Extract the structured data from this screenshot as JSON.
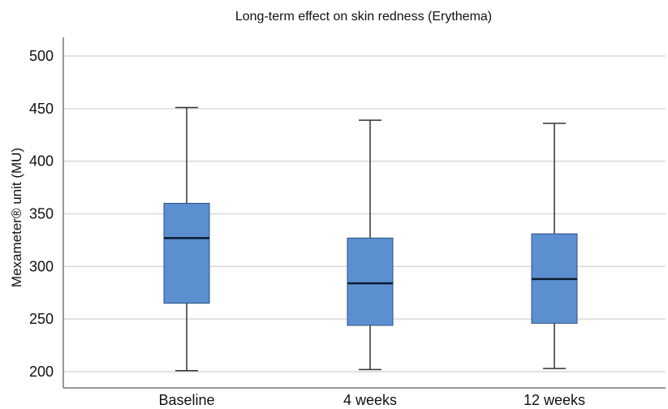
{
  "chart_data": {
    "type": "box",
    "title": "Long-term effect on skin redness (Erythema)",
    "xlabel": "",
    "ylabel": "Mexameter® unit (MU)",
    "ylim": [
      185,
      520
    ],
    "yticks": [
      200,
      250,
      300,
      350,
      400,
      450,
      500
    ],
    "grid": "horizontal",
    "colors": {
      "box_fill": "#5b8fd0",
      "box_edge": "#2f4f7f",
      "median": "#0b1b33",
      "whisker": "#333333",
      "grid": "#d9d9d9",
      "axis": "#777777"
    },
    "categories": [
      "Baseline",
      "4 weeks",
      "12 weeks"
    ],
    "series": [
      {
        "category": "Baseline",
        "min": 201,
        "q1": 265,
        "median": 327,
        "q3": 360,
        "max": 451
      },
      {
        "category": "4 weeks",
        "min": 202,
        "q1": 244,
        "median": 284,
        "q3": 327,
        "max": 439
      },
      {
        "category": "12 weeks",
        "min": 203,
        "q1": 246,
        "median": 288,
        "q3": 331,
        "max": 436
      }
    ]
  }
}
